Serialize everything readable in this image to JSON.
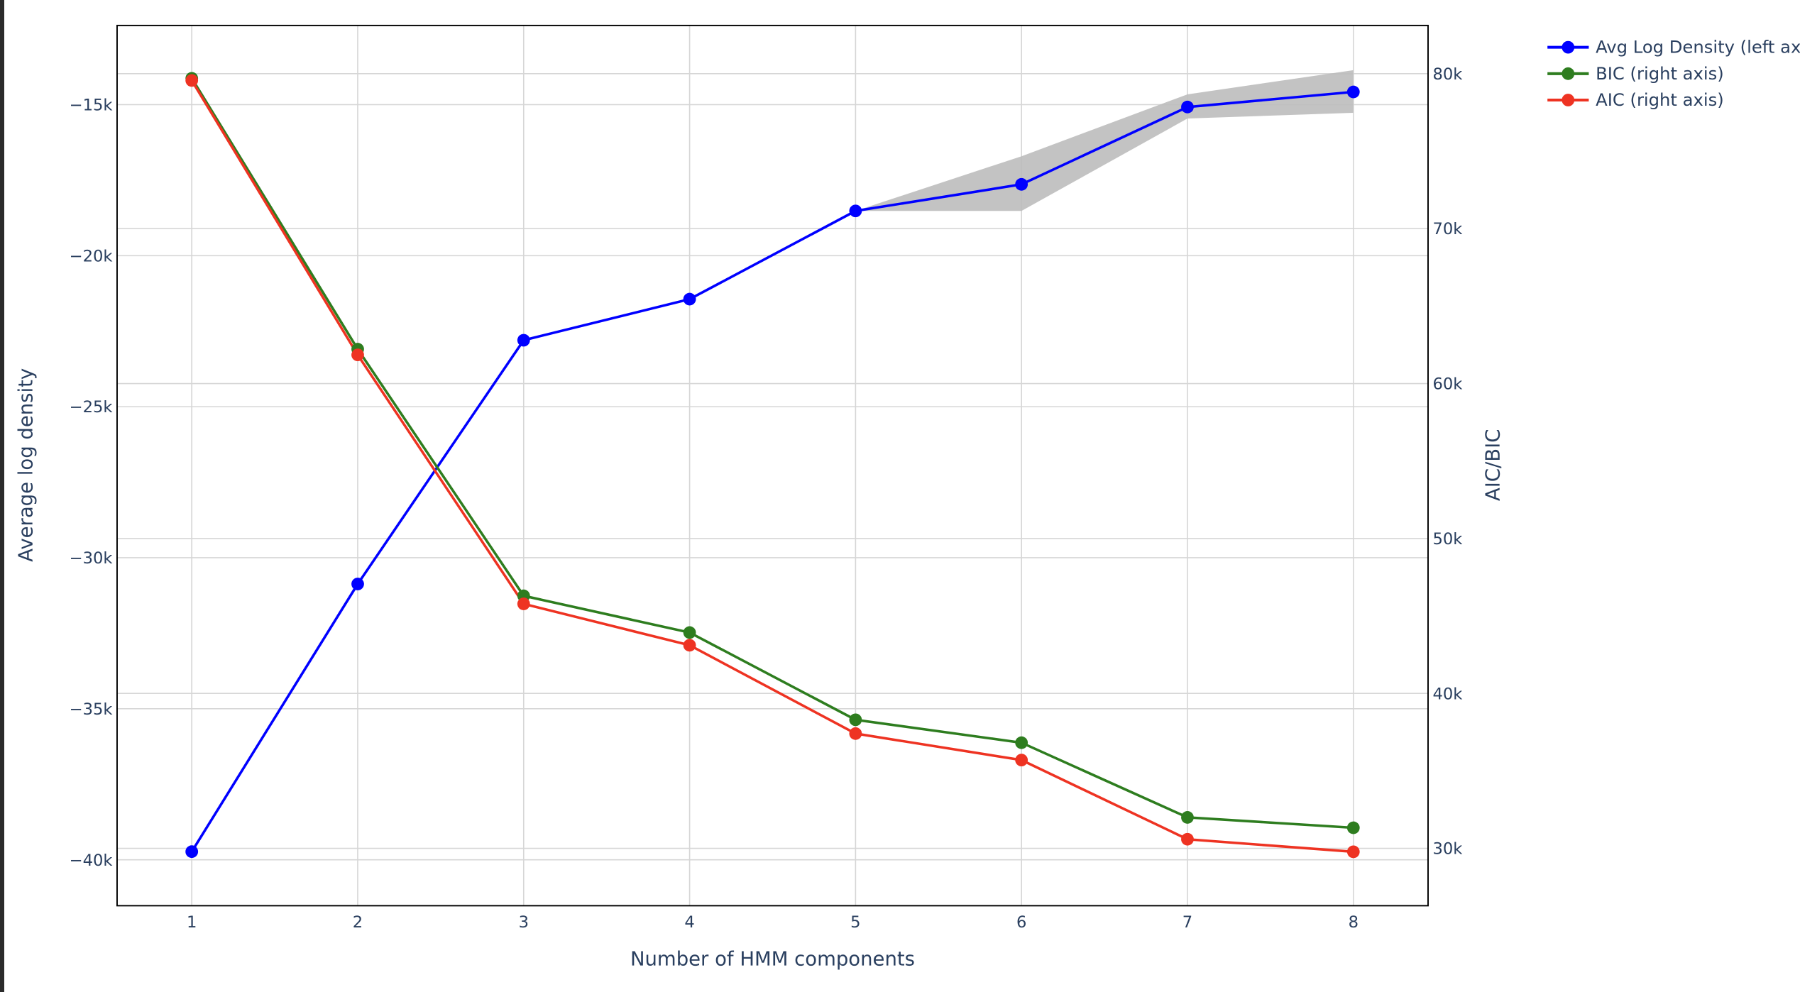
{
  "chart_data": {
    "type": "line",
    "xlabel": "Number of HMM components",
    "ylabel": "Average log density",
    "y2label": "AIC/BIC",
    "x": [
      1,
      2,
      3,
      4,
      5,
      6,
      7,
      8
    ],
    "x_ticks": [
      "1",
      "2",
      "3",
      "4",
      "5",
      "6",
      "7",
      "8"
    ],
    "xlim": [
      0.55,
      8.45
    ],
    "ylim": [
      -41520,
      -12380
    ],
    "y2lim": [
      26300,
      83110
    ],
    "y_ticks": [
      {
        "value": -15000,
        "label": "−15k"
      },
      {
        "value": -20000,
        "label": "−20k"
      },
      {
        "value": -25000,
        "label": "−25k"
      },
      {
        "value": -30000,
        "label": "−30k"
      },
      {
        "value": -35000,
        "label": "−35k"
      },
      {
        "value": -40000,
        "label": "−40k"
      }
    ],
    "y2_ticks": [
      {
        "value": 80000,
        "label": "80k"
      },
      {
        "value": 70000,
        "label": "70k"
      },
      {
        "value": 60000,
        "label": "60k"
      },
      {
        "value": 50000,
        "label": "50k"
      },
      {
        "value": 40000,
        "label": "40k"
      },
      {
        "value": 30000,
        "label": "30k"
      }
    ],
    "grid": true,
    "legend_position": "top-right outside",
    "series": [
      {
        "name": "Avg Log Density (left axis)",
        "axis": "left",
        "color": "#0000ff",
        "values": [
          -39730,
          -30870,
          -22800,
          -21440,
          -18520,
          -17640,
          -15080,
          -14580
        ],
        "band_upper": [
          -39730,
          -30870,
          -22800,
          -21440,
          -18520,
          -16710,
          -14660,
          -13860
        ],
        "band_lower": [
          -39730,
          -30870,
          -22800,
          -21440,
          -18520,
          -18520,
          -15460,
          -15270
        ],
        "band_color": "#bdbdbd"
      },
      {
        "name": "BIC (right axis)",
        "axis": "right",
        "color": "#2e7d1f",
        "values": [
          79700,
          62220,
          46300,
          43930,
          38300,
          36820,
          32000,
          31330
        ]
      },
      {
        "name": "AIC (right axis)",
        "axis": "right",
        "color": "#ee3322",
        "values": [
          79560,
          61850,
          45780,
          43110,
          37410,
          35700,
          30590,
          29780
        ]
      }
    ]
  }
}
